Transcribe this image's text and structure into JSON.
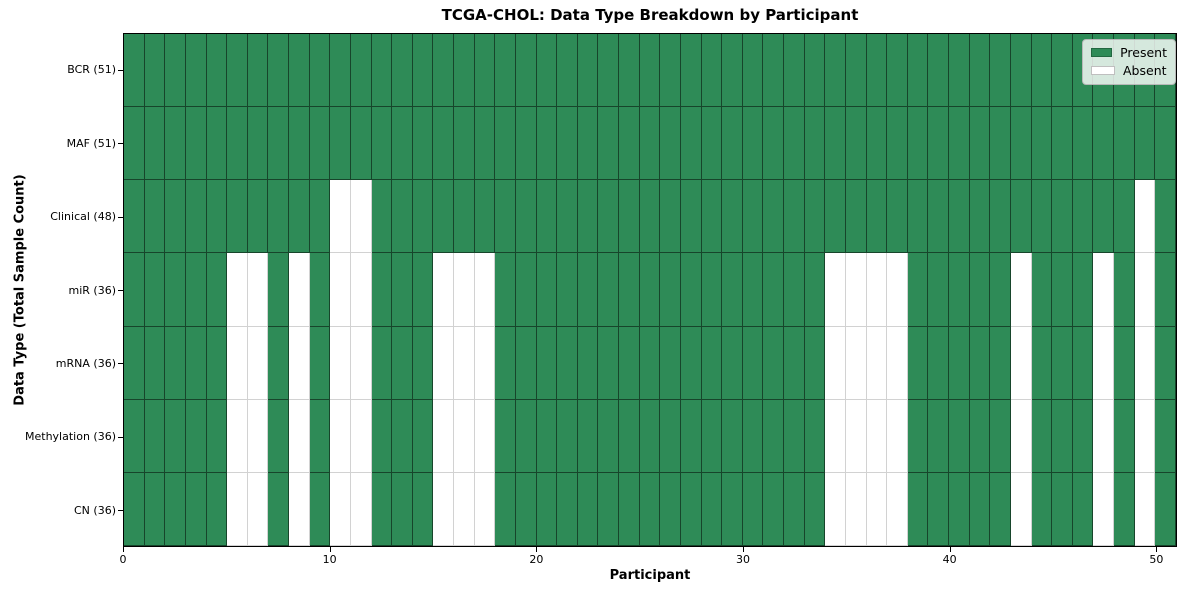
{
  "colors": {
    "present": "#2e8b57",
    "absent": "#ffffff",
    "grid_on_present": "rgba(0,0,0,0.5)",
    "grid_on_absent": "#d2d2d2",
    "spine": "#000000"
  },
  "chart_data": {
    "type": "heatmap",
    "title": "TCGA-CHOL: Data Type Breakdown by Participant",
    "xlabel": "Participant",
    "ylabel": "Data Type (Total Sample Count)",
    "legend_labels": [
      "Present",
      "Absent"
    ],
    "legend_position": "upper right",
    "grid": true,
    "participants": 51,
    "x_axis_range": [
      0,
      51
    ],
    "x_ticks": [
      0,
      10,
      20,
      30,
      40,
      50
    ],
    "cell_states": [
      "present",
      "absent"
    ],
    "rows": [
      {
        "label": "BCR (51)",
        "data_type": "BCR",
        "present_count": 51,
        "absent_participants": []
      },
      {
        "label": "MAF (51)",
        "data_type": "MAF",
        "present_count": 51,
        "absent_participants": []
      },
      {
        "label": "Clinical (48)",
        "data_type": "Clinical",
        "present_count": 48,
        "absent_participants": [
          10,
          11,
          49
        ]
      },
      {
        "label": "miR (36)",
        "data_type": "miR",
        "present_count": 36,
        "absent_participants": [
          5,
          6,
          8,
          10,
          11,
          15,
          16,
          17,
          34,
          35,
          36,
          37,
          43,
          47,
          49
        ]
      },
      {
        "label": "mRNA (36)",
        "data_type": "mRNA",
        "present_count": 36,
        "absent_participants": [
          5,
          6,
          8,
          10,
          11,
          15,
          16,
          17,
          34,
          35,
          36,
          37,
          43,
          47,
          49
        ]
      },
      {
        "label": "Methylation (36)",
        "data_type": "Methylation",
        "present_count": 36,
        "absent_participants": [
          5,
          6,
          8,
          10,
          11,
          15,
          16,
          17,
          34,
          35,
          36,
          37,
          43,
          47,
          49
        ]
      },
      {
        "label": "CN (36)",
        "data_type": "CN",
        "present_count": 36,
        "absent_participants": [
          5,
          6,
          8,
          10,
          11,
          15,
          16,
          17,
          34,
          35,
          36,
          37,
          43,
          47,
          49
        ]
      }
    ]
  }
}
